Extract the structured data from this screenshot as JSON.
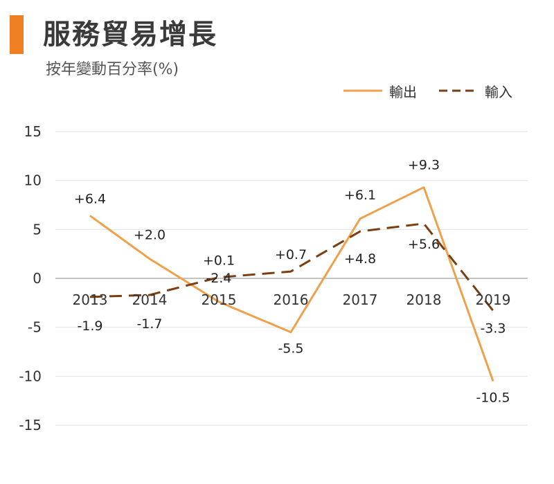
{
  "header": {
    "title": "服務貿易增長",
    "subtitle": "按年變動百分率(%)",
    "accent_color": "#f07f23"
  },
  "chart_data": {
    "type": "line",
    "title": "服務貿易增長",
    "subtitle": "按年變動百分率(%)",
    "xlabel": "",
    "ylabel": "",
    "categories": [
      "2013",
      "2014",
      "2015",
      "2016",
      "2017",
      "2018",
      "2019"
    ],
    "ylim": [
      -15,
      15
    ],
    "yticks": [
      "15",
      "10",
      "5",
      "0",
      "-5",
      "-10",
      "-15"
    ],
    "grid": true,
    "legend_position": "top-right",
    "series": [
      {
        "name": "輸出",
        "values": [
          6.4,
          2.0,
          -2.4,
          -5.5,
          6.1,
          9.3,
          -10.5
        ],
        "labels": [
          "+6.4",
          "+2.0",
          "-2.4",
          "-5.5",
          "+6.1",
          "+9.3",
          "-10.5"
        ],
        "color": "#f0a04b",
        "style": "solid"
      },
      {
        "name": "輸入",
        "values": [
          -1.9,
          -1.7,
          0.1,
          0.7,
          4.8,
          5.6,
          -3.3
        ],
        "labels": [
          "-1.9",
          "-1.7",
          "+0.1",
          "+0.7",
          "+4.8",
          "+5.6",
          "-3.3"
        ],
        "color": "#7a3e10",
        "style": "dashed"
      }
    ]
  }
}
